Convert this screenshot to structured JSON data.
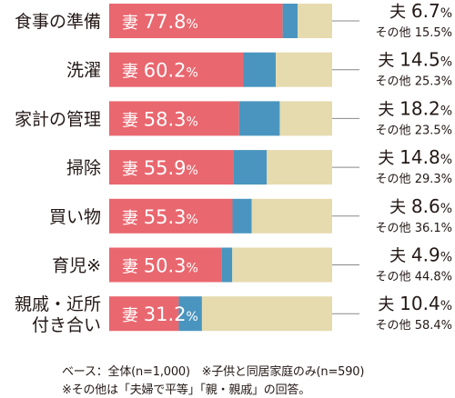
{
  "chart_data": {
    "type": "bar",
    "stacked": true,
    "orientation": "horizontal",
    "categories": [
      "食事の準備",
      "洗濯",
      "家計の管理",
      "掃除",
      "買い物",
      "育児※",
      "親戚・近所付き合い"
    ],
    "category_lines": [
      [
        "食事の準備"
      ],
      [
        "洗濯"
      ],
      [
        "家計の管理"
      ],
      [
        "掃除"
      ],
      [
        "買い物"
      ],
      [
        "育児※"
      ],
      [
        "親戚・近所",
        "付き合い"
      ]
    ],
    "series": [
      {
        "name": "妻",
        "values": [
          77.8,
          60.2,
          58.3,
          55.9,
          55.3,
          50.3,
          31.2
        ]
      },
      {
        "name": "夫",
        "values": [
          6.7,
          14.5,
          18.2,
          14.8,
          8.6,
          4.9,
          10.4
        ]
      },
      {
        "name": "その他",
        "values": [
          15.5,
          25.3,
          23.5,
          29.3,
          36.1,
          44.8,
          58.4
        ]
      }
    ],
    "unit": "%",
    "xlim": [
      0,
      100
    ],
    "colors": {
      "wife": "#e9676f",
      "husband": "#4a95bf",
      "other": "#e6dbae",
      "text": "#231815",
      "leader": "#888888"
    }
  },
  "notes": {
    "line1": "ベース：全体(n=1,000)　※子供と同居家庭のみ(n=590)",
    "line2": "※その他は「夫婦で平等」「親・親戚」の回答。"
  }
}
